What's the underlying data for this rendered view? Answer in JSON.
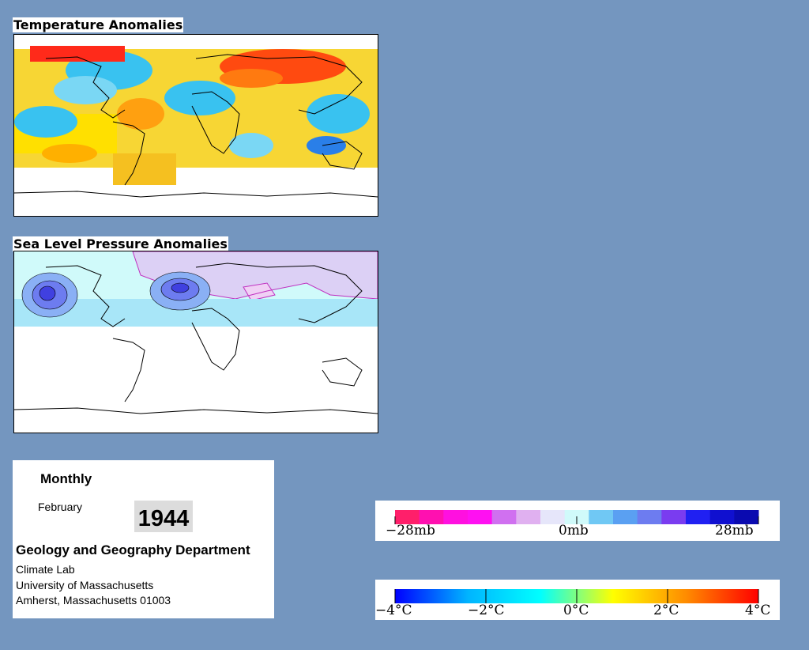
{
  "panels": {
    "temperature_title": "Temperature Anomalies",
    "pressure_title": "Sea Level Pressure Anomalies"
  },
  "info": {
    "period": "Monthly",
    "month": "February",
    "year": "1944",
    "department": "Geology and Geography Department",
    "lab": "Climate Lab",
    "university": "University of Massachusetts",
    "address": "Amherst, Massachusetts 01003"
  },
  "pressure_legend": {
    "ticks": [
      "−28mb",
      "0mb",
      "28mb"
    ],
    "colors": [
      "#ff1f6a",
      "#ff10b0",
      "#ff10e0",
      "#ff10f2",
      "#d070f0",
      "#e0b0f0",
      "#e6e6fa",
      "#d0fafa",
      "#70c8f4",
      "#5aa0f2",
      "#6d7cf0",
      "#7a3cf0",
      "#2020f2",
      "#1010d0",
      "#0a0ab0"
    ]
  },
  "temperature_legend": {
    "ticks": [
      "−4°C",
      "−2°C",
      "0°C",
      "2°C",
      "4°C"
    ],
    "gradient": [
      "#0000ff",
      "#00b4ff",
      "#00ffff",
      "#ffff00",
      "#ff8c00",
      "#ff0000"
    ]
  },
  "colors": {
    "background": "#7496bf",
    "ocean_white": "#ffffff",
    "hot": "#ff2a00",
    "cold": "#1e90ff"
  }
}
